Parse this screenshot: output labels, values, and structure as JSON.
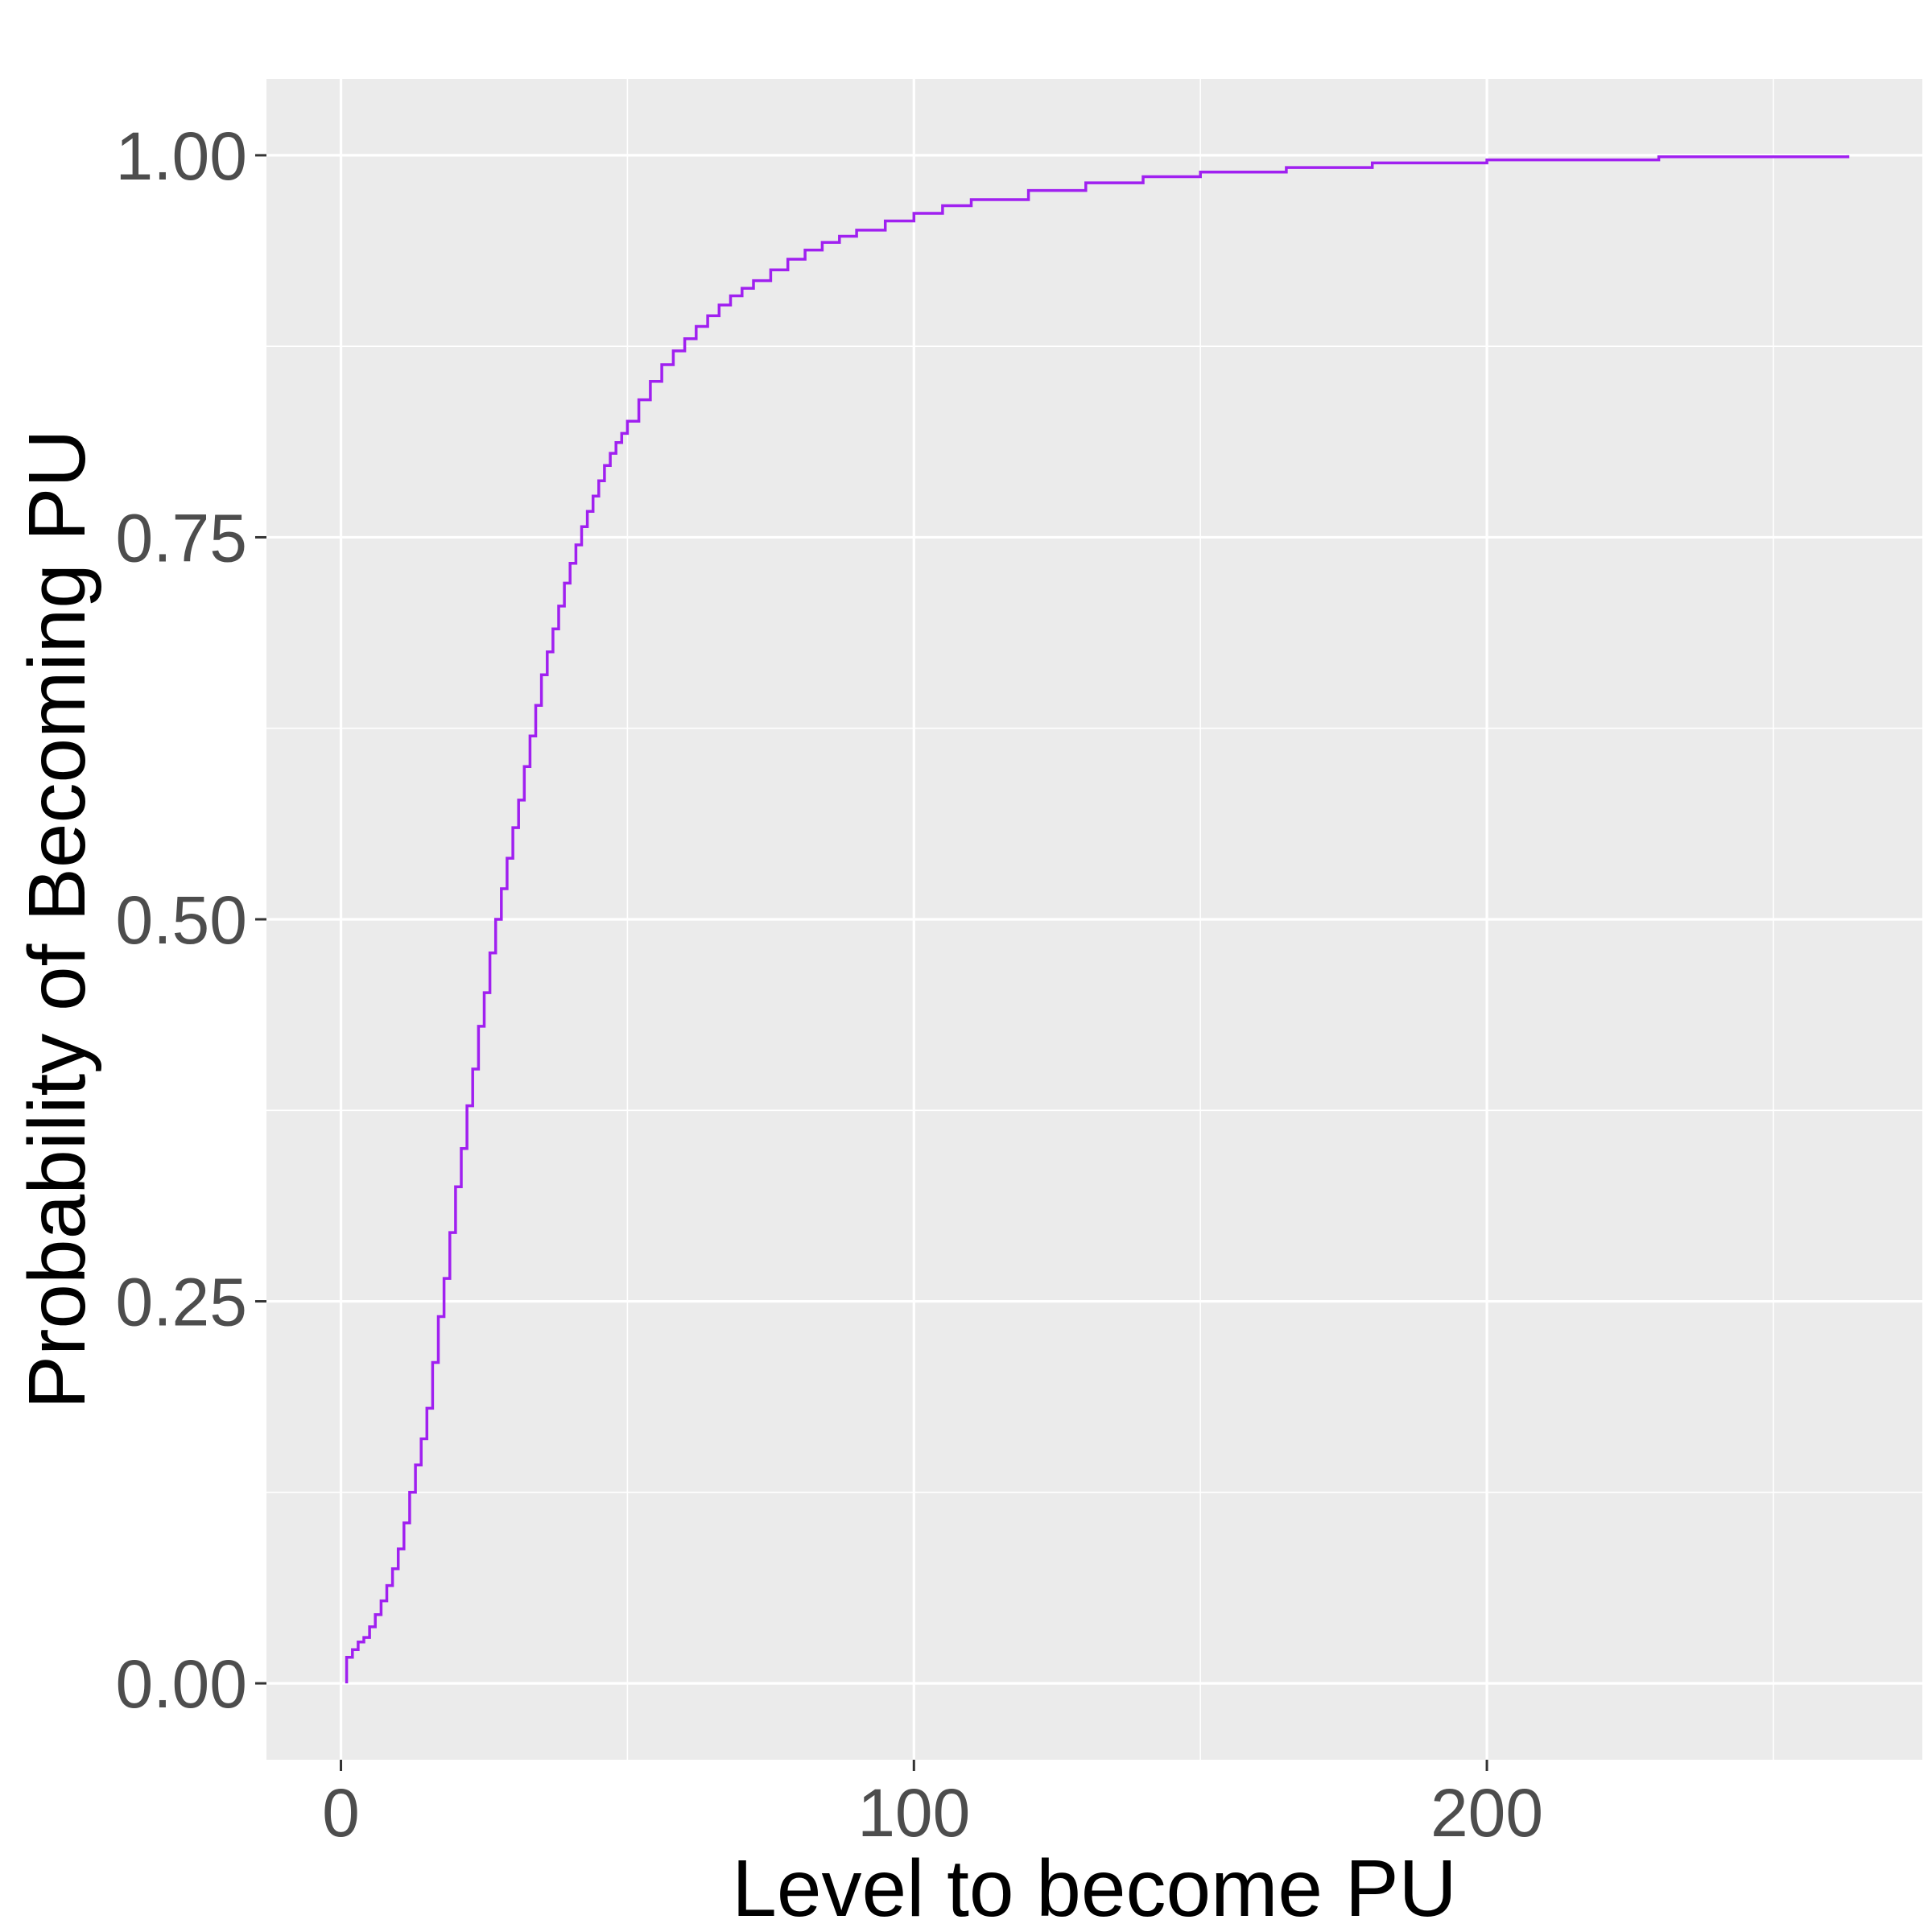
{
  "chart_data": {
    "type": "line",
    "title": "",
    "xlabel": "Level to become PU",
    "ylabel": "Probability of Becoming PU",
    "xlim": [
      -13,
      276
    ],
    "ylim": [
      -0.05,
      1.05
    ],
    "x_ticks": [
      0,
      100,
      200
    ],
    "x_tick_labels": [
      "0",
      "100",
      "200"
    ],
    "x_minor_ticks": [
      50,
      150,
      250
    ],
    "y_ticks": [
      0,
      0.25,
      0.5,
      0.75,
      1.0
    ],
    "y_tick_labels": [
      "0.00",
      "0.25",
      "0.50",
      "0.75",
      "1.00"
    ],
    "y_minor_ticks": [
      0.125,
      0.375,
      0.625,
      0.875
    ],
    "grid": true,
    "legend": "none",
    "colors": {
      "panel": "#ebebeb",
      "grid": "#ffffff",
      "line": "#a020f0",
      "tick_text": "#4d4d4d"
    },
    "series": [
      {
        "step": true,
        "x": [
          1,
          2,
          3,
          4,
          5,
          6,
          7,
          8,
          9,
          10,
          11,
          12,
          13,
          14,
          15,
          16,
          17,
          18,
          19,
          20,
          21,
          22,
          23,
          24,
          25,
          26,
          27,
          28,
          29,
          30,
          31,
          32,
          33,
          34,
          35,
          36,
          37,
          38,
          39,
          40,
          41,
          42,
          43,
          44,
          45,
          46,
          47,
          48,
          49,
          50,
          52,
          54,
          56,
          58,
          60,
          62,
          64,
          66,
          68,
          70,
          72,
          75,
          78,
          81,
          84,
          87,
          90,
          95,
          100,
          105,
          110,
          120,
          130,
          140,
          150,
          165,
          180,
          200,
          230,
          263
        ],
        "y": [
          0.017,
          0.022,
          0.027,
          0.03,
          0.037,
          0.045,
          0.054,
          0.064,
          0.075,
          0.088,
          0.105,
          0.125,
          0.143,
          0.16,
          0.18,
          0.21,
          0.24,
          0.265,
          0.295,
          0.325,
          0.35,
          0.378,
          0.402,
          0.43,
          0.452,
          0.478,
          0.5,
          0.52,
          0.54,
          0.56,
          0.578,
          0.6,
          0.62,
          0.64,
          0.66,
          0.675,
          0.69,
          0.705,
          0.72,
          0.733,
          0.745,
          0.757,
          0.767,
          0.777,
          0.787,
          0.797,
          0.805,
          0.812,
          0.818,
          0.826,
          0.84,
          0.852,
          0.863,
          0.872,
          0.88,
          0.888,
          0.895,
          0.902,
          0.908,
          0.913,
          0.918,
          0.925,
          0.932,
          0.938,
          0.943,
          0.947,
          0.951,
          0.957,
          0.962,
          0.967,
          0.971,
          0.977,
          0.982,
          0.986,
          0.989,
          0.992,
          0.995,
          0.997,
          0.999,
          1.0
        ]
      }
    ]
  }
}
